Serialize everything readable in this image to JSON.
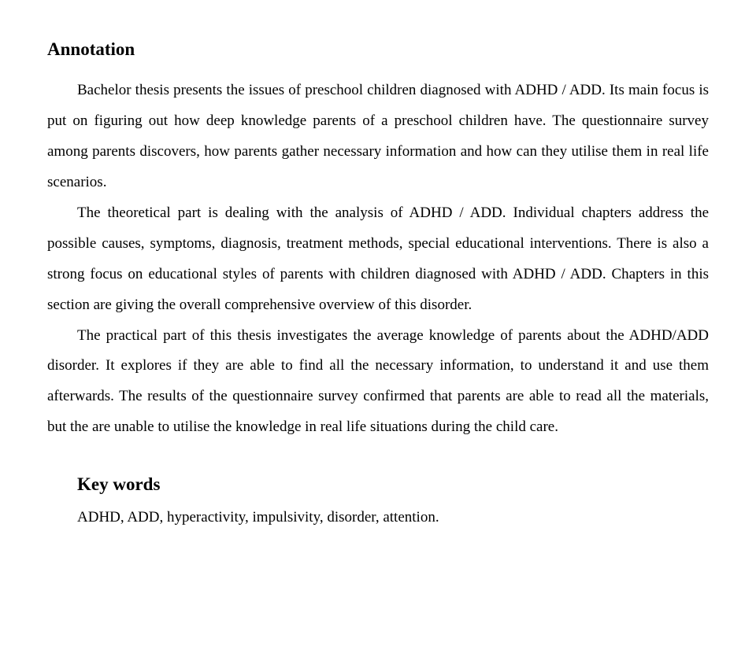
{
  "heading1": "Annotation",
  "para1": "Bachelor thesis presents the issues of preschool children diagnosed with ADHD / ADD. Its main focus is put on figuring out how deep knowledge parents of a preschool children have. The questionnaire survey among parents discovers, how parents gather necessary information and how can they utilise them in real life scenarios.",
  "para2": "The theoretical part is dealing with the analysis of ADHD / ADD. Individual chapters address the possible causes, symptoms, diagnosis, treatment methods, special educational interventions. There is also a strong focus on educational styles of parents with children diagnosed with ADHD / ADD. Chapters in this section are giving the overall comprehensive overview of this disorder.",
  "para3": "The practical part of this thesis investigates the average knowledge of parents about the ADHD/ADD disorder. It explores if they are able to find all the necessary information, to understand it and use them afterwards. The results of the questionnaire survey confirmed that parents are able to read all the materials, but the are unable to utilise the knowledge in real life situations during the child care.",
  "heading2": "Key words",
  "keywords": "ADHD, ADD, hyperactivity, impulsivity, disorder, attention."
}
